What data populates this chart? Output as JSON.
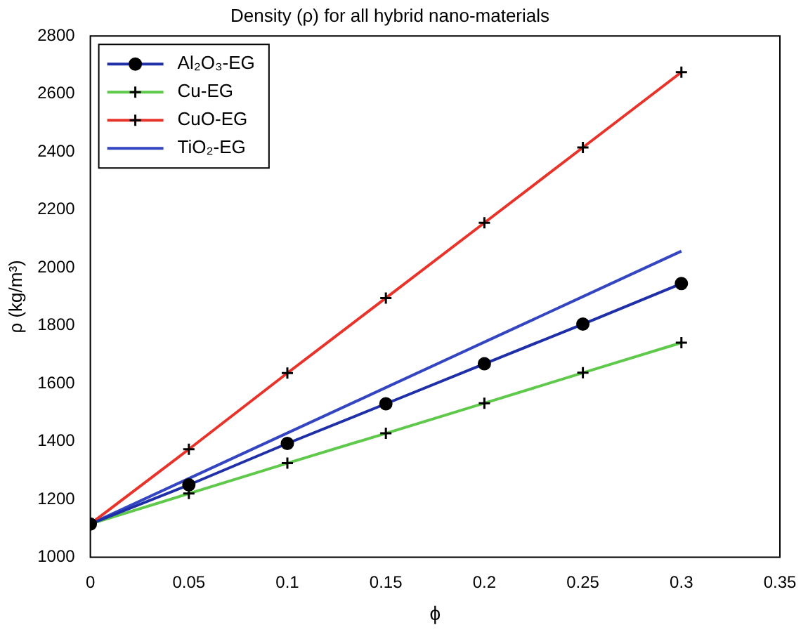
{
  "chart_data": {
    "type": "line",
    "title": "Density (ρ) for all hybrid nano-materials",
    "xlabel": "ϕ",
    "ylabel": "ρ (kg/m³)",
    "x": [
      0,
      0.05,
      0.1,
      0.15,
      0.2,
      0.25,
      0.3
    ],
    "series": [
      {
        "name": "Al₂O₃-EG",
        "color": "#1f2fa8",
        "marker": "circle",
        "values": [
          1115,
          1250,
          1393,
          1530,
          1668,
          1805,
          1945
        ]
      },
      {
        "name": "Cu-EG",
        "color": "#5ec94a",
        "marker": "cross",
        "values": [
          1115,
          1220,
          1325,
          1428,
          1532,
          1637,
          1741
        ]
      },
      {
        "name": "CuO-EG",
        "color": "#e8332a",
        "marker": "cross",
        "values": [
          1115,
          1373,
          1636,
          1895,
          2155,
          2415,
          2675
        ]
      },
      {
        "name": "TiO₂-EG",
        "color": "#3345c0",
        "marker": "none",
        "values": [
          1115,
          1272,
          1429,
          1586,
          1743,
          1900,
          2057
        ]
      }
    ],
    "xlim": [
      0,
      0.35
    ],
    "xticks": [
      0,
      0.05,
      0.1,
      0.15,
      0.2,
      0.25,
      0.3,
      0.35
    ],
    "ylim": [
      1000,
      2800
    ],
    "yticks": [
      1000,
      1200,
      1400,
      1600,
      1800,
      2000,
      2200,
      2400,
      2600,
      2800
    ],
    "grid": false,
    "legend": "top left"
  }
}
